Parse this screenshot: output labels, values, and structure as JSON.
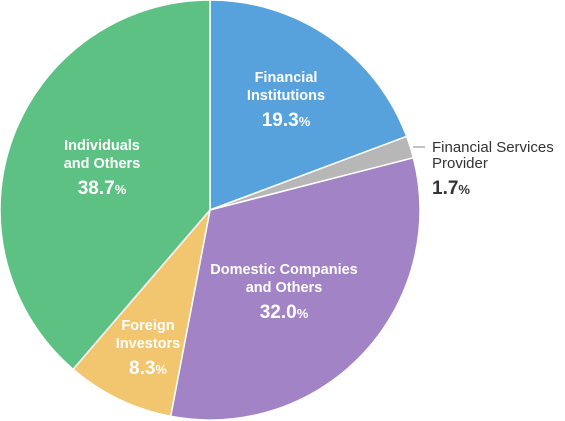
{
  "chart_data": {
    "type": "pie",
    "unit": "%",
    "slices": [
      {
        "name": "Financial Institutions",
        "name_lines": [
          "Financial",
          "Institutions"
        ],
        "value": 19.3,
        "value_label": "19.3",
        "color": "#57a1dc",
        "label_inside": true
      },
      {
        "name": "Financial Services Provider",
        "name_lines": [
          "Financial Services",
          "Provider"
        ],
        "value": 1.7,
        "value_label": "1.7",
        "color": "#b7b7b7",
        "label_inside": false
      },
      {
        "name": "Domestic Companies and Others",
        "name_lines": [
          "Domestic Companies",
          "and Others"
        ],
        "value": 32.0,
        "value_label": "32.0",
        "color": "#a284c6",
        "label_inside": true
      },
      {
        "name": "Foreign Investors",
        "name_lines": [
          "Foreign",
          "Investors"
        ],
        "value": 8.3,
        "value_label": "8.3",
        "color": "#f2c56f",
        "label_inside": true
      },
      {
        "name": "Individuals and Others",
        "name_lines": [
          "Individuals",
          "and Others"
        ],
        "value": 38.7,
        "value_label": "38.7",
        "color": "#5cc183",
        "label_inside": true
      }
    ]
  }
}
